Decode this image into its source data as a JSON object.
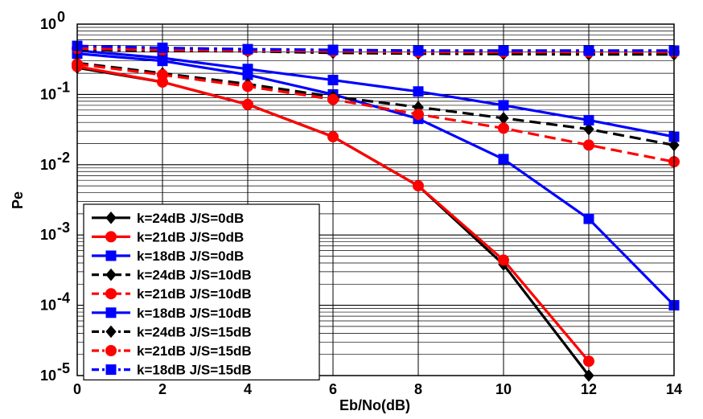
{
  "chart_data": {
    "type": "line",
    "xlabel": "Eb/No(dB)",
    "ylabel": "Pe",
    "yscale": "log",
    "xlim": [
      0,
      14
    ],
    "ylim": [
      1e-05,
      1
    ],
    "x_ticks": [
      0,
      2,
      4,
      6,
      8,
      10,
      12,
      14
    ],
    "y_ticks": [
      {
        "value": 1,
        "base": "10",
        "exp": "0"
      },
      {
        "value": 0.1,
        "base": "10",
        "exp": "-1"
      },
      {
        "value": 0.01,
        "base": "10",
        "exp": "-2"
      },
      {
        "value": 0.001,
        "base": "10",
        "exp": "-3"
      },
      {
        "value": 0.0001,
        "base": "10",
        "exp": "-4"
      },
      {
        "value": 1e-05,
        "base": "10",
        "exp": "-5"
      }
    ],
    "grid": true,
    "legend_position": "lower-left",
    "series": [
      {
        "name": "k=24dB J/S=0dB",
        "color": "#000000",
        "style": "solid",
        "marker": "diamond",
        "x": [
          0,
          2,
          4,
          6,
          8,
          10,
          12
        ],
        "y": [
          0.24,
          0.15,
          0.072,
          0.025,
          0.005,
          0.00038,
          1e-05
        ]
      },
      {
        "name": "k=21dB J/S=0dB",
        "color": "#ff0000",
        "style": "solid",
        "marker": "circle",
        "x": [
          0,
          2,
          4,
          6,
          8,
          10,
          12
        ],
        "y": [
          0.25,
          0.15,
          0.072,
          0.025,
          0.005,
          0.00044,
          1.6e-05
        ]
      },
      {
        "name": "k=18dB J/S=0dB",
        "color": "#0000ff",
        "style": "solid",
        "marker": "square",
        "x": [
          0,
          2,
          4,
          6,
          8,
          10,
          12,
          14
        ],
        "y": [
          0.38,
          0.3,
          0.19,
          0.1,
          0.045,
          0.012,
          0.0017,
          0.0001
        ]
      },
      {
        "name": "k=24dB J/S=10dB",
        "color": "#000000",
        "style": "dashed",
        "marker": "diamond",
        "x": [
          0,
          2,
          4,
          6,
          8,
          10,
          12,
          14
        ],
        "y": [
          0.28,
          0.2,
          0.14,
          0.093,
          0.066,
          0.046,
          0.032,
          0.019
        ]
      },
      {
        "name": "k=21dB J/S=10dB",
        "color": "#ff0000",
        "style": "dashed",
        "marker": "circle",
        "x": [
          0,
          2,
          4,
          6,
          8,
          10,
          12,
          14
        ],
        "y": [
          0.27,
          0.19,
          0.13,
          0.085,
          0.052,
          0.033,
          0.019,
          0.011
        ]
      },
      {
        "name": "k=18dB J/S=10dB",
        "color": "#0000ff",
        "style": "solid",
        "marker": "square",
        "x": [
          0,
          2,
          4,
          6,
          8,
          10,
          12,
          14
        ],
        "y": [
          0.42,
          0.33,
          0.23,
          0.16,
          0.11,
          0.07,
          0.043,
          0.025
        ]
      },
      {
        "name": "k=24dB J/S=15dB",
        "color": "#000000",
        "style": "dashdot",
        "marker": "diamond",
        "x": [
          0,
          2,
          4,
          6,
          8,
          10,
          12,
          14
        ],
        "y": [
          0.43,
          0.42,
          0.41,
          0.39,
          0.38,
          0.375,
          0.37,
          0.37
        ]
      },
      {
        "name": "k=21dB J/S=15dB",
        "color": "#ff0000",
        "style": "dashdot",
        "marker": "circle",
        "x": [
          0,
          2,
          4,
          6,
          8,
          10,
          12,
          14
        ],
        "y": [
          0.45,
          0.43,
          0.42,
          0.41,
          0.4,
          0.4,
          0.4,
          0.4
        ]
      },
      {
        "name": "k=18dB J/S=15dB",
        "color": "#0000ff",
        "style": "dashdot",
        "marker": "square",
        "x": [
          0,
          2,
          4,
          6,
          8,
          10,
          12,
          14
        ],
        "y": [
          0.49,
          0.46,
          0.44,
          0.43,
          0.42,
          0.42,
          0.42,
          0.42
        ]
      }
    ]
  }
}
